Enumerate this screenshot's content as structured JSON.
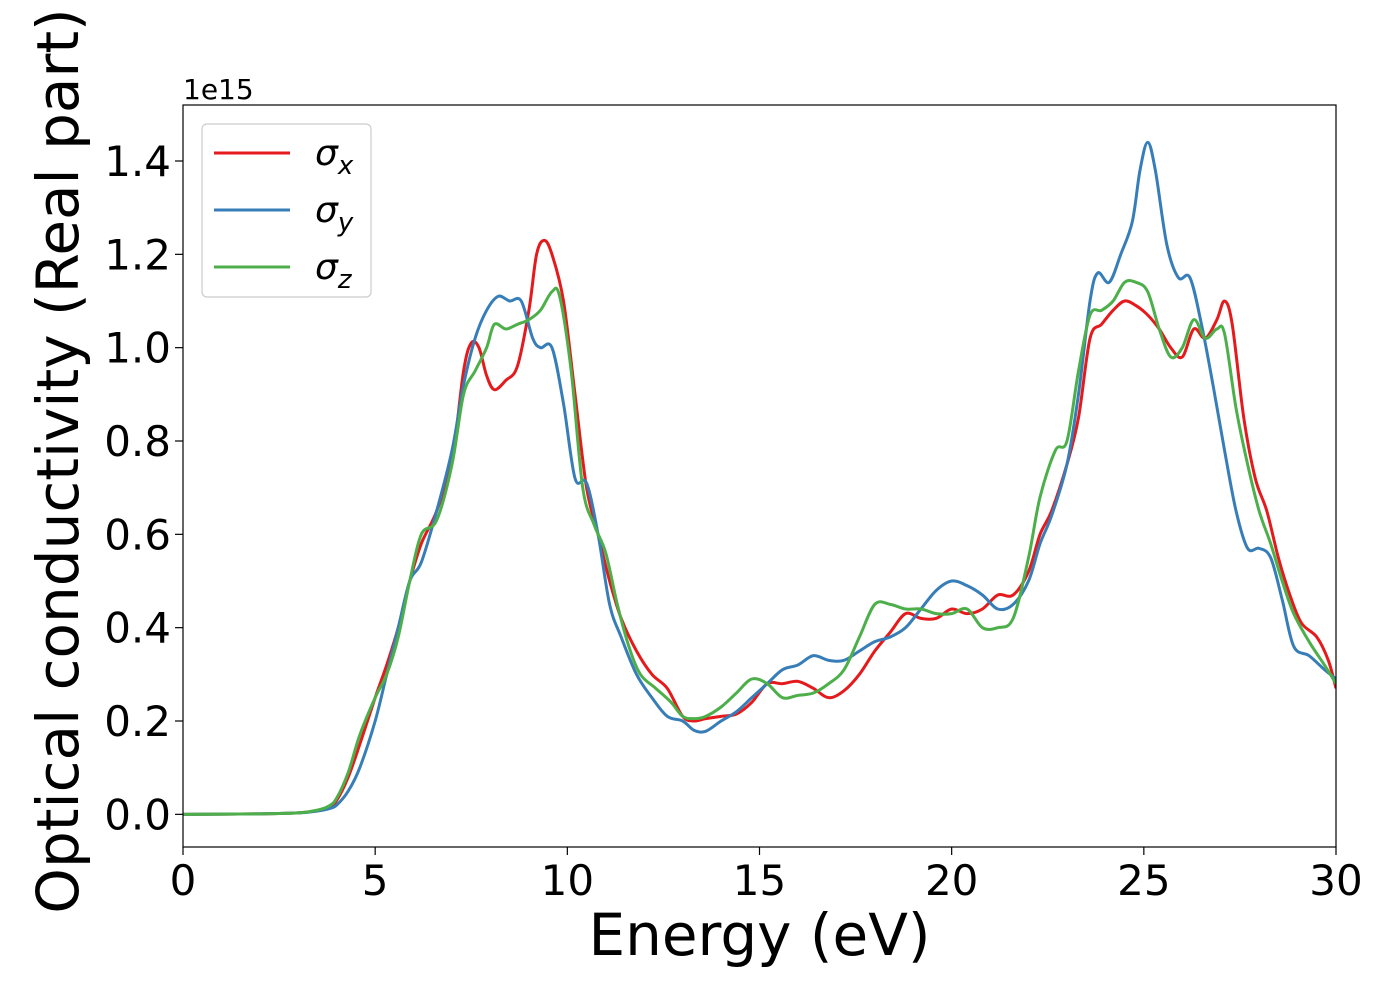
{
  "chart_data": {
    "type": "line",
    "title": "",
    "xlabel": "Energy (eV)",
    "ylabel": "Optical conductivity (Real part)",
    "y_offset_text": "1e15",
    "xlim": [
      0,
      30
    ],
    "ylim": [
      -0.07,
      1.52
    ],
    "x_ticks": [
      0,
      5,
      10,
      15,
      20,
      25,
      30
    ],
    "y_ticks": [
      0.0,
      0.2,
      0.4,
      0.6,
      0.8,
      1.0,
      1.2,
      1.4
    ],
    "x_tick_labels": [
      "0",
      "5",
      "10",
      "15",
      "20",
      "25",
      "30"
    ],
    "y_tick_labels": [
      "0.0",
      "0.2",
      "0.4",
      "0.6",
      "0.8",
      "1.0",
      "1.2",
      "1.4"
    ],
    "grid": false,
    "legend": {
      "placement": "top-left"
    },
    "series": [
      {
        "name": "σ",
        "subscript": "x",
        "color": "#e41a1c",
        "points": [
          [
            0,
            0
          ],
          [
            2,
            0.001
          ],
          [
            3,
            0.003
          ],
          [
            3.5,
            0.008
          ],
          [
            3.8,
            0.015
          ],
          [
            4.0,
            0.03
          ],
          [
            4.3,
            0.08
          ],
          [
            4.6,
            0.15
          ],
          [
            5.0,
            0.25
          ],
          [
            5.3,
            0.32
          ],
          [
            5.6,
            0.4
          ],
          [
            5.9,
            0.5
          ],
          [
            6.2,
            0.58
          ],
          [
            6.6,
            0.65
          ],
          [
            7.0,
            0.76
          ],
          [
            7.3,
            0.95
          ],
          [
            7.5,
            1.01
          ],
          [
            7.7,
            1.0
          ],
          [
            7.9,
            0.94
          ],
          [
            8.1,
            0.91
          ],
          [
            8.4,
            0.93
          ],
          [
            8.7,
            0.96
          ],
          [
            9.0,
            1.08
          ],
          [
            9.2,
            1.2
          ],
          [
            9.4,
            1.23
          ],
          [
            9.6,
            1.2
          ],
          [
            9.9,
            1.1
          ],
          [
            10.2,
            0.9
          ],
          [
            10.5,
            0.7
          ],
          [
            10.8,
            0.6
          ],
          [
            11.1,
            0.5
          ],
          [
            11.4,
            0.42
          ],
          [
            11.8,
            0.35
          ],
          [
            12.2,
            0.3
          ],
          [
            12.6,
            0.27
          ],
          [
            13.0,
            0.21
          ],
          [
            13.3,
            0.2
          ],
          [
            13.6,
            0.205
          ],
          [
            14.0,
            0.21
          ],
          [
            14.4,
            0.215
          ],
          [
            14.8,
            0.24
          ],
          [
            15.2,
            0.28
          ],
          [
            15.6,
            0.28
          ],
          [
            16.0,
            0.285
          ],
          [
            16.4,
            0.27
          ],
          [
            16.8,
            0.25
          ],
          [
            17.2,
            0.265
          ],
          [
            17.6,
            0.3
          ],
          [
            18.0,
            0.35
          ],
          [
            18.4,
            0.39
          ],
          [
            18.8,
            0.43
          ],
          [
            19.2,
            0.42
          ],
          [
            19.6,
            0.42
          ],
          [
            20.0,
            0.44
          ],
          [
            20.4,
            0.43
          ],
          [
            20.8,
            0.44
          ],
          [
            21.2,
            0.47
          ],
          [
            21.6,
            0.47
          ],
          [
            22.0,
            0.52
          ],
          [
            22.3,
            0.6
          ],
          [
            22.6,
            0.65
          ],
          [
            23.0,
            0.75
          ],
          [
            23.3,
            0.85
          ],
          [
            23.6,
            1.02
          ],
          [
            23.9,
            1.05
          ],
          [
            24.2,
            1.08
          ],
          [
            24.5,
            1.1
          ],
          [
            24.8,
            1.09
          ],
          [
            25.1,
            1.07
          ],
          [
            25.4,
            1.04
          ],
          [
            25.7,
            1.0
          ],
          [
            26.0,
            0.98
          ],
          [
            26.3,
            1.04
          ],
          [
            26.6,
            1.02
          ],
          [
            26.9,
            1.06
          ],
          [
            27.1,
            1.1
          ],
          [
            27.3,
            1.05
          ],
          [
            27.6,
            0.85
          ],
          [
            27.9,
            0.72
          ],
          [
            28.2,
            0.65
          ],
          [
            28.5,
            0.55
          ],
          [
            28.8,
            0.47
          ],
          [
            29.1,
            0.41
          ],
          [
            29.5,
            0.38
          ],
          [
            29.8,
            0.33
          ],
          [
            30,
            0.27
          ]
        ]
      },
      {
        "name": "σ",
        "subscript": "y",
        "color": "#377eb8",
        "points": [
          [
            0,
            0
          ],
          [
            2,
            0.001
          ],
          [
            3,
            0.003
          ],
          [
            3.5,
            0.007
          ],
          [
            3.8,
            0.012
          ],
          [
            4.0,
            0.02
          ],
          [
            4.3,
            0.05
          ],
          [
            4.6,
            0.1
          ],
          [
            5.0,
            0.2
          ],
          [
            5.3,
            0.3
          ],
          [
            5.6,
            0.4
          ],
          [
            5.9,
            0.5
          ],
          [
            6.2,
            0.54
          ],
          [
            6.6,
            0.65
          ],
          [
            7.0,
            0.78
          ],
          [
            7.3,
            0.92
          ],
          [
            7.6,
            1.02
          ],
          [
            7.9,
            1.08
          ],
          [
            8.2,
            1.11
          ],
          [
            8.5,
            1.1
          ],
          [
            8.8,
            1.1
          ],
          [
            9.1,
            1.02
          ],
          [
            9.3,
            1.0
          ],
          [
            9.6,
            1.0
          ],
          [
            9.9,
            0.88
          ],
          [
            10.2,
            0.72
          ],
          [
            10.5,
            0.71
          ],
          [
            10.8,
            0.6
          ],
          [
            11.1,
            0.45
          ],
          [
            11.4,
            0.38
          ],
          [
            11.8,
            0.3
          ],
          [
            12.2,
            0.25
          ],
          [
            12.6,
            0.21
          ],
          [
            13.0,
            0.2
          ],
          [
            13.3,
            0.18
          ],
          [
            13.6,
            0.178
          ],
          [
            14.0,
            0.2
          ],
          [
            14.4,
            0.22
          ],
          [
            14.8,
            0.25
          ],
          [
            15.2,
            0.28
          ],
          [
            15.6,
            0.31
          ],
          [
            16.0,
            0.32
          ],
          [
            16.4,
            0.34
          ],
          [
            16.8,
            0.33
          ],
          [
            17.2,
            0.33
          ],
          [
            17.6,
            0.35
          ],
          [
            18.0,
            0.37
          ],
          [
            18.4,
            0.38
          ],
          [
            18.8,
            0.4
          ],
          [
            19.2,
            0.44
          ],
          [
            19.6,
            0.48
          ],
          [
            20.0,
            0.5
          ],
          [
            20.4,
            0.49
          ],
          [
            20.8,
            0.47
          ],
          [
            21.2,
            0.44
          ],
          [
            21.6,
            0.45
          ],
          [
            22.0,
            0.5
          ],
          [
            22.3,
            0.58
          ],
          [
            22.6,
            0.64
          ],
          [
            23.0,
            0.75
          ],
          [
            23.3,
            0.9
          ],
          [
            23.6,
            1.1
          ],
          [
            23.8,
            1.16
          ],
          [
            24.1,
            1.14
          ],
          [
            24.4,
            1.2
          ],
          [
            24.7,
            1.27
          ],
          [
            24.9,
            1.38
          ],
          [
            25.1,
            1.44
          ],
          [
            25.3,
            1.38
          ],
          [
            25.6,
            1.22
          ],
          [
            25.9,
            1.15
          ],
          [
            26.2,
            1.15
          ],
          [
            26.5,
            1.05
          ],
          [
            26.8,
            0.92
          ],
          [
            27.1,
            0.78
          ],
          [
            27.4,
            0.65
          ],
          [
            27.7,
            0.57
          ],
          [
            28.0,
            0.57
          ],
          [
            28.3,
            0.55
          ],
          [
            28.6,
            0.46
          ],
          [
            28.9,
            0.36
          ],
          [
            29.3,
            0.34
          ],
          [
            29.7,
            0.31
          ],
          [
            30,
            0.29
          ]
        ]
      },
      {
        "name": "σ",
        "subscript": "z",
        "color": "#4daf4a",
        "points": [
          [
            0,
            0
          ],
          [
            2,
            0.001
          ],
          [
            3,
            0.003
          ],
          [
            3.5,
            0.009
          ],
          [
            3.8,
            0.018
          ],
          [
            4.0,
            0.035
          ],
          [
            4.3,
            0.09
          ],
          [
            4.6,
            0.17
          ],
          [
            5.0,
            0.25
          ],
          [
            5.3,
            0.3
          ],
          [
            5.6,
            0.38
          ],
          [
            5.9,
            0.5
          ],
          [
            6.2,
            0.6
          ],
          [
            6.6,
            0.63
          ],
          [
            7.0,
            0.75
          ],
          [
            7.3,
            0.9
          ],
          [
            7.6,
            0.95
          ],
          [
            7.9,
            1.0
          ],
          [
            8.1,
            1.05
          ],
          [
            8.4,
            1.04
          ],
          [
            8.7,
            1.05
          ],
          [
            9.0,
            1.06
          ],
          [
            9.3,
            1.08
          ],
          [
            9.6,
            1.12
          ],
          [
            9.8,
            1.11
          ],
          [
            10.1,
            0.95
          ],
          [
            10.4,
            0.7
          ],
          [
            10.7,
            0.62
          ],
          [
            11.0,
            0.56
          ],
          [
            11.3,
            0.45
          ],
          [
            11.6,
            0.36
          ],
          [
            11.9,
            0.3
          ],
          [
            12.3,
            0.27
          ],
          [
            12.7,
            0.24
          ],
          [
            13.0,
            0.21
          ],
          [
            13.3,
            0.205
          ],
          [
            13.6,
            0.21
          ],
          [
            14.0,
            0.23
          ],
          [
            14.4,
            0.26
          ],
          [
            14.8,
            0.29
          ],
          [
            15.2,
            0.28
          ],
          [
            15.6,
            0.25
          ],
          [
            16.0,
            0.255
          ],
          [
            16.4,
            0.26
          ],
          [
            16.8,
            0.28
          ],
          [
            17.2,
            0.31
          ],
          [
            17.6,
            0.38
          ],
          [
            18.0,
            0.45
          ],
          [
            18.4,
            0.45
          ],
          [
            18.8,
            0.44
          ],
          [
            19.2,
            0.44
          ],
          [
            19.6,
            0.43
          ],
          [
            20.0,
            0.43
          ],
          [
            20.4,
            0.44
          ],
          [
            20.8,
            0.4
          ],
          [
            21.2,
            0.4
          ],
          [
            21.6,
            0.42
          ],
          [
            22.0,
            0.55
          ],
          [
            22.3,
            0.68
          ],
          [
            22.7,
            0.78
          ],
          [
            23.0,
            0.8
          ],
          [
            23.3,
            0.95
          ],
          [
            23.6,
            1.07
          ],
          [
            23.9,
            1.08
          ],
          [
            24.2,
            1.1
          ],
          [
            24.5,
            1.14
          ],
          [
            24.8,
            1.14
          ],
          [
            25.1,
            1.12
          ],
          [
            25.4,
            1.04
          ],
          [
            25.7,
            0.98
          ],
          [
            26.0,
            1.0
          ],
          [
            26.3,
            1.06
          ],
          [
            26.6,
            1.02
          ],
          [
            26.9,
            1.04
          ],
          [
            27.1,
            1.03
          ],
          [
            27.4,
            0.87
          ],
          [
            27.7,
            0.75
          ],
          [
            28.0,
            0.65
          ],
          [
            28.3,
            0.58
          ],
          [
            28.6,
            0.5
          ],
          [
            28.9,
            0.43
          ],
          [
            29.3,
            0.37
          ],
          [
            29.7,
            0.32
          ],
          [
            30,
            0.28
          ]
        ]
      }
    ]
  }
}
